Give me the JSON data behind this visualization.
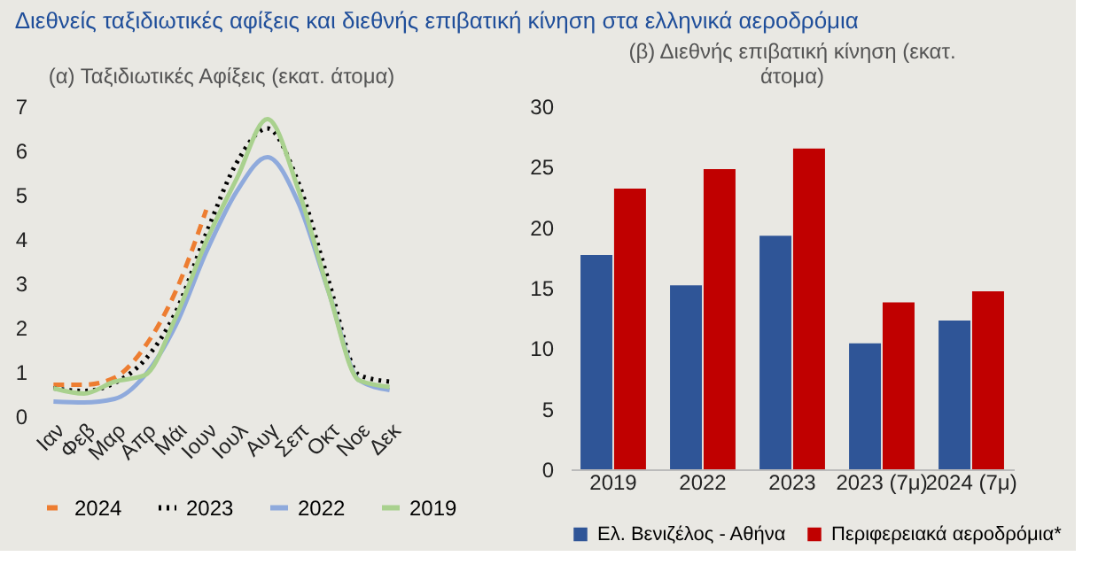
{
  "chart_data": [
    {
      "type": "line",
      "title": "(α) Ταξιδιωτικές Αφίξεις (εκατ. άτομα)",
      "annotations": [
        "Διεθνείς ταξιδιωτικές αφίξεις και διεθνής επιβατική κίνηση στα ελληνικά αεροδρόμια"
      ],
      "categories": [
        "Ιαν",
        "Φεβ",
        "Μαρ",
        "Απρ",
        "Μάι",
        "Ιουν",
        "Ιουλ",
        "Αυγ",
        "Σεπ",
        "Οκτ",
        "Νοε",
        "Δεκ"
      ],
      "series": [
        {
          "name": "2024",
          "color": "#ed7d31",
          "line_style": "dashed",
          "values": [
            0.71,
            0.71,
            0.87,
            1.58,
            2.82,
            4.66,
            null,
            null,
            null,
            null,
            null,
            null
          ]
        },
        {
          "name": "2023",
          "color": "#000000",
          "line_style": "dotted",
          "values": [
            0.63,
            0.57,
            0.75,
            1.28,
            2.35,
            4.13,
            5.73,
            6.5,
            5.3,
            3.06,
            0.93,
            0.78
          ]
        },
        {
          "name": "2022",
          "color": "#8faadc",
          "line_style": "solid",
          "values": [
            0.33,
            0.31,
            0.39,
            0.93,
            2.05,
            3.71,
            5.08,
            5.85,
            4.84,
            2.82,
            0.81,
            0.59
          ]
        },
        {
          "name": "2019",
          "color": "#a9d18e",
          "line_style": "solid",
          "values": [
            0.63,
            0.51,
            0.78,
            0.93,
            2.23,
            3.95,
            5.37,
            6.71,
            5.14,
            2.82,
            0.81,
            0.66
          ]
        }
      ],
      "ylim": [
        0,
        7
      ],
      "yticks": [
        0,
        1,
        2,
        3,
        4,
        5,
        6,
        7
      ],
      "grid": false,
      "legend": "bottom",
      "marker": "none"
    },
    {
      "type": "bar",
      "title": "(β) Διεθνής επιβατική κίνηση (εκατ. άτομα)",
      "categories": [
        "2019",
        "2022",
        "2023",
        "2023 (7μ)",
        "2024 (7μ)"
      ],
      "series": [
        {
          "name": "Ελ. Βενιζέλος - Αθήνα",
          "color": "#2f5597",
          "values": [
            17.7,
            15.2,
            19.3,
            10.4,
            12.3
          ]
        },
        {
          "name": "Περιφερειακά αεροδρόμια*",
          "color": "#c00000",
          "values": [
            23.2,
            24.8,
            26.5,
            13.8,
            14.7
          ]
        }
      ],
      "ylim": [
        0,
        30
      ],
      "yticks": [
        0,
        5,
        10,
        15,
        20,
        25,
        30
      ],
      "grid": false,
      "legend": "bottom"
    }
  ]
}
